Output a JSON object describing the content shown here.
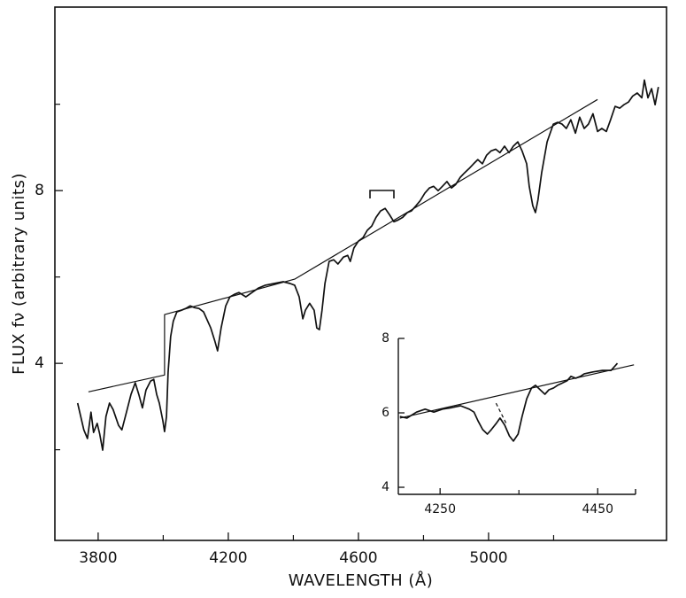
{
  "chart_data": [
    {
      "type": "line",
      "xlabel": "WAVELENGTH (Å)",
      "ylabel": "FLUX fν (arbitrary units)",
      "xlim": [
        3667,
        5547
      ],
      "ylim": [
        -0.1,
        12.25
      ],
      "xticks": [
        3800,
        4200,
        4600,
        5000
      ],
      "xticks_minor": [
        4000,
        4400,
        4800,
        5200
      ],
      "yticks": [
        4,
        8
      ],
      "yticks_minor": [
        2,
        6,
        10
      ],
      "series": [
        {
          "color": "#111111",
          "x": [
            3737,
            3756,
            3767,
            3778,
            3786,
            3797,
            3805,
            3814,
            3824,
            3835,
            3846,
            3863,
            3873,
            3887,
            3901,
            3914,
            3925,
            3936,
            3947,
            3961,
            3971,
            3980,
            3988,
            3999,
            4004,
            4010,
            4015,
            4023,
            4031,
            4042,
            4056,
            4069,
            4083,
            4097,
            4110,
            4124,
            4146,
            4159,
            4167,
            4178,
            4192,
            4205,
            4219,
            4233,
            4254,
            4273,
            4292,
            4314,
            4341,
            4369,
            4390,
            4404,
            4418,
            4429,
            4437,
            4450,
            4464,
            4472,
            4480,
            4488,
            4497,
            4510,
            4524,
            4537,
            4554,
            4567,
            4575,
            4586,
            4600,
            4614,
            4627,
            4641,
            4654,
            4668,
            4682,
            4695,
            4709,
            4722,
            4736,
            4750,
            4763,
            4777,
            4790,
            4804,
            4818,
            4831,
            4845,
            4858,
            4872,
            4886,
            4899,
            4913,
            4926,
            4940,
            4954,
            4967,
            4981,
            4994,
            5008,
            5022,
            5035,
            5049,
            5063,
            5076,
            5090,
            5103,
            5117,
            5125,
            5136,
            5144,
            5152,
            5163,
            5180,
            5199,
            5212,
            5226,
            5239,
            5253,
            5267,
            5280,
            5294,
            5307,
            5321,
            5335,
            5348,
            5362,
            5375,
            5389,
            5403,
            5416,
            5430,
            5443,
            5457,
            5471,
            5479,
            5490,
            5501,
            5512,
            5522
          ],
          "values": [
            3.08,
            2.46,
            2.26,
            2.87,
            2.4,
            2.61,
            2.36,
            1.99,
            2.77,
            3.08,
            2.93,
            2.56,
            2.46,
            2.87,
            3.28,
            3.55,
            3.28,
            2.97,
            3.38,
            3.59,
            3.63,
            3.28,
            3.08,
            2.67,
            2.42,
            2.77,
            3.79,
            4.62,
            4.98,
            5.19,
            5.23,
            5.27,
            5.33,
            5.29,
            5.27,
            5.19,
            4.82,
            4.51,
            4.29,
            4.82,
            5.33,
            5.54,
            5.6,
            5.64,
            5.54,
            5.64,
            5.74,
            5.81,
            5.85,
            5.89,
            5.85,
            5.81,
            5.54,
            5.03,
            5.23,
            5.39,
            5.23,
            4.82,
            4.78,
            5.23,
            5.85,
            6.36,
            6.4,
            6.3,
            6.46,
            6.5,
            6.36,
            6.67,
            6.83,
            6.91,
            7.08,
            7.18,
            7.38,
            7.53,
            7.59,
            7.45,
            7.28,
            7.32,
            7.38,
            7.49,
            7.53,
            7.65,
            7.77,
            7.94,
            8.06,
            8.1,
            8.0,
            8.1,
            8.21,
            8.06,
            8.14,
            8.31,
            8.41,
            8.51,
            8.62,
            8.72,
            8.62,
            8.82,
            8.92,
            8.96,
            8.88,
            9.03,
            8.88,
            9.03,
            9.13,
            8.92,
            8.62,
            8.1,
            7.65,
            7.49,
            7.79,
            8.41,
            9.13,
            9.54,
            9.58,
            9.54,
            9.44,
            9.64,
            9.33,
            9.7,
            9.44,
            9.54,
            9.78,
            9.37,
            9.44,
            9.37,
            9.64,
            9.95,
            9.91,
            9.99,
            10.05,
            10.19,
            10.26,
            10.15,
            10.56,
            10.15,
            10.36,
            9.99,
            10.4
          ]
        },
        {
          "color": "#111111",
          "x": [
            3770,
            4004,
            4004,
            4404,
            5335
          ],
          "values": [
            3.34,
            3.73,
            5.13,
            5.95,
            10.11
          ]
        }
      ]
    },
    {
      "type": "line",
      "xlim": [
        4197,
        4498
      ],
      "ylim": [
        3.81,
        8
      ],
      "xticks": [
        4250,
        4450
      ],
      "xticks_minor": [
        4350
      ],
      "yticks": [
        4,
        6,
        8
      ],
      "series": [
        {
          "color": "#111111",
          "x": [
            4199,
            4208,
            4220,
            4231,
            4242,
            4253,
            4265,
            4276,
            4287,
            4293,
            4298,
            4304,
            4310,
            4315,
            4321,
            4326,
            4332,
            4338,
            4343,
            4349,
            4354,
            4360,
            4366,
            4371,
            4377,
            4383,
            4388,
            4394,
            4399,
            4411,
            4416,
            4422,
            4428,
            4433,
            4444,
            4456,
            4467,
            4475
          ],
          "values": [
            5.9,
            5.86,
            6.02,
            6.1,
            6.02,
            6.1,
            6.14,
            6.19,
            6.1,
            6.02,
            5.79,
            5.55,
            5.43,
            5.55,
            5.71,
            5.86,
            5.67,
            5.38,
            5.24,
            5.43,
            5.9,
            6.38,
            6.67,
            6.74,
            6.62,
            6.5,
            6.62,
            6.67,
            6.74,
            6.86,
            6.98,
            6.93,
            6.98,
            7.05,
            7.1,
            7.14,
            7.14,
            7.33
          ]
        },
        {
          "color": "#111111",
          "x": [
            4199,
            4496
          ],
          "values": [
            5.86,
            7.29
          ]
        },
        {
          "color": "#111111",
          "dash": true,
          "x": [
            4321,
            4334
          ],
          "values": [
            6.26,
            5.71
          ]
        }
      ]
    }
  ]
}
